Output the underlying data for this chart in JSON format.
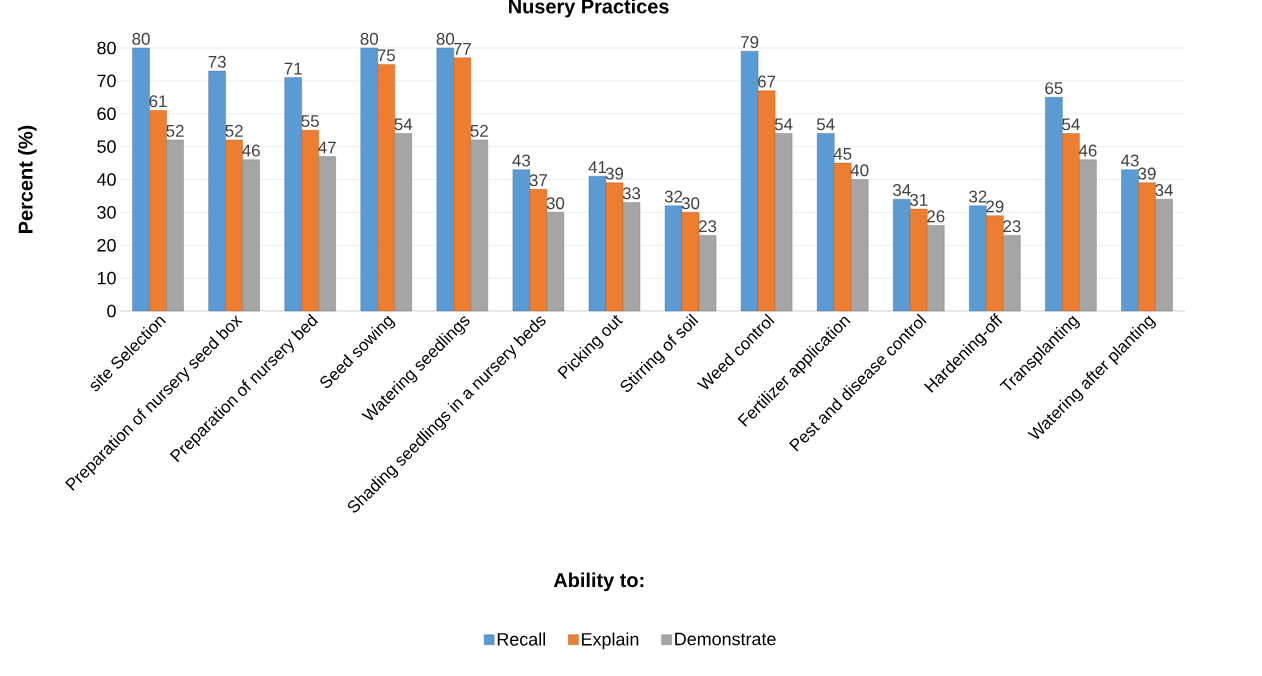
{
  "chart_data": {
    "type": "bar",
    "title": "Nusery Practices",
    "xlabel": "Ability to:",
    "ylabel": "Percent (%)",
    "categories": [
      "site Selection",
      "Preparation of nursery seed box",
      "Preparation of nursery bed",
      "Seed sowing",
      "Watering seedlings",
      "Shading seedlings in a nursery beds",
      "Picking out",
      "Stirring of soil",
      "Weed control",
      "Fertilizer application",
      "Pest and disease control",
      "Hardening-off",
      "Transplanting",
      "Watering after planting"
    ],
    "series": [
      {
        "name": "Recall",
        "color": "#5b9bd5",
        "values": [
          80,
          73,
          71,
          80,
          80,
          43,
          41,
          32,
          79,
          54,
          34,
          32,
          65,
          43
        ]
      },
      {
        "name": "Explain",
        "color": "#ed7d31",
        "values": [
          61,
          52,
          55,
          75,
          77,
          37,
          39,
          30,
          67,
          45,
          31,
          29,
          54,
          39
        ]
      },
      {
        "name": "Demonstrate",
        "color": "#a5a5a5",
        "values": [
          52,
          46,
          47,
          54,
          52,
          30,
          33,
          23,
          54,
          40,
          26,
          23,
          46,
          34
        ]
      }
    ],
    "ylim": [
      0,
      80
    ],
    "yticks": [
      0,
      10,
      20,
      30,
      40,
      50,
      60,
      70,
      80
    ],
    "grid": "y",
    "legend": "bottom",
    "data_labels": true
  }
}
